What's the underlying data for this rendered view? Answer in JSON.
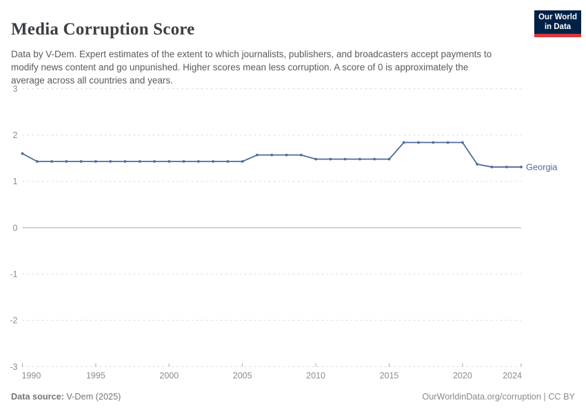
{
  "header": {
    "title": "Media Corruption Score",
    "subtitle": "Data by V-Dem. Expert estimates of the extent to which journalists, publishers, and broadcasters accept payments to modify news content and go unpunished. Higher scores mean less corruption. A score of 0 is approximately the average across all countries and years.",
    "logo": {
      "line1": "Our World",
      "line2": "in Data",
      "bg_color": "#002147",
      "accent_color": "#d7383c"
    }
  },
  "chart_data": {
    "type": "line",
    "title": "Media Corruption Score",
    "xlabel": "",
    "ylabel": "",
    "xlim": [
      1990,
      2024
    ],
    "ylim": [
      -3,
      3
    ],
    "x_ticks": [
      1990,
      1995,
      2000,
      2005,
      2010,
      2015,
      2020,
      2024
    ],
    "y_ticks": [
      3,
      2,
      1,
      0,
      -1,
      -2,
      -3
    ],
    "grid": "horizontal-dashed, zero-line solid",
    "legend_position": "end-of-line label",
    "series": [
      {
        "name": "Georgia",
        "color": "#4c6a9c",
        "x": [
          1990,
          1991,
          1992,
          1993,
          1994,
          1995,
          1996,
          1997,
          1998,
          1999,
          2000,
          2001,
          2002,
          2003,
          2004,
          2005,
          2006,
          2007,
          2008,
          2009,
          2010,
          2011,
          2012,
          2013,
          2014,
          2015,
          2016,
          2017,
          2018,
          2019,
          2020,
          2021,
          2022,
          2023,
          2024
        ],
        "values": [
          1.6,
          1.43,
          1.43,
          1.43,
          1.43,
          1.43,
          1.43,
          1.43,
          1.43,
          1.43,
          1.43,
          1.43,
          1.43,
          1.43,
          1.43,
          1.43,
          1.57,
          1.57,
          1.57,
          1.57,
          1.48,
          1.48,
          1.48,
          1.48,
          1.48,
          1.48,
          1.84,
          1.84,
          1.84,
          1.84,
          1.84,
          1.37,
          1.31,
          1.31,
          1.31
        ]
      }
    ]
  },
  "footer": {
    "source_label": "Data source:",
    "source_value": " V-Dem (2025)",
    "attribution": "OurWorldinData.org/corruption | CC BY"
  }
}
